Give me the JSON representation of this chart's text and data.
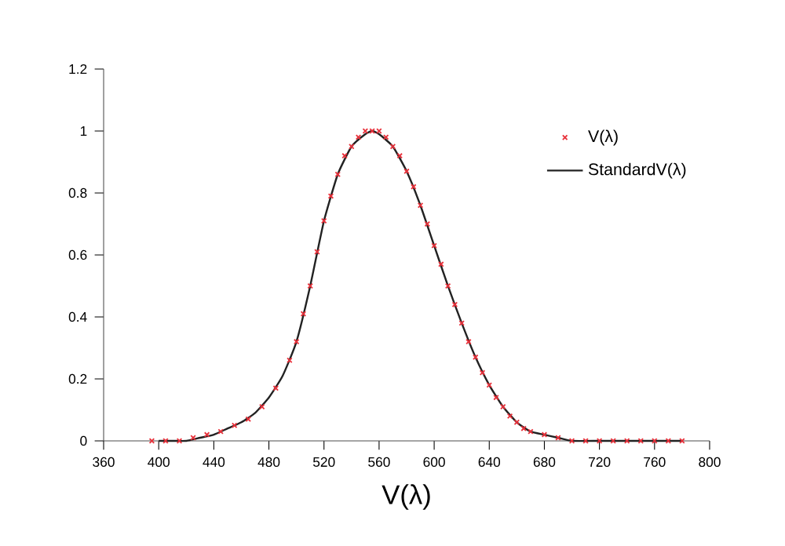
{
  "chart_data": {
    "type": "line",
    "xlabel": "V(λ)",
    "xlim": [
      360,
      800
    ],
    "ylim": [
      0,
      1.2
    ],
    "xticks": [
      360,
      400,
      440,
      480,
      520,
      560,
      600,
      640,
      680,
      720,
      760,
      800
    ],
    "yticks": [
      0,
      0.2,
      0.4,
      0.6,
      0.8,
      1,
      1.2
    ],
    "legend": "top right",
    "series": [
      {
        "name": "V(λ)",
        "type": "scatter",
        "marker": "cross",
        "color": "#e8303a",
        "x": [
          395,
          405,
          415,
          425,
          435,
          445,
          455,
          465,
          475,
          485,
          495,
          500,
          505,
          510,
          515,
          520,
          525,
          530,
          535,
          540,
          545,
          550,
          555,
          560,
          565,
          570,
          575,
          580,
          585,
          590,
          595,
          600,
          605,
          610,
          615,
          620,
          625,
          630,
          635,
          640,
          645,
          650,
          655,
          660,
          665,
          670,
          680,
          690,
          700,
          710,
          720,
          730,
          740,
          750,
          760,
          770,
          780
        ],
        "values": [
          0,
          0,
          0,
          0.01,
          0.02,
          0.03,
          0.05,
          0.07,
          0.11,
          0.17,
          0.26,
          0.32,
          0.41,
          0.5,
          0.61,
          0.71,
          0.79,
          0.86,
          0.92,
          0.95,
          0.98,
          1,
          1,
          1,
          0.98,
          0.95,
          0.92,
          0.87,
          0.82,
          0.76,
          0.7,
          0.63,
          0.57,
          0.5,
          0.44,
          0.38,
          0.32,
          0.27,
          0.22,
          0.18,
          0.14,
          0.11,
          0.08,
          0.06,
          0.04,
          0.03,
          0.02,
          0.01,
          0,
          0,
          0,
          0,
          0,
          0,
          0,
          0,
          0
        ]
      },
      {
        "name": "StandardV(λ)",
        "line_style": "solid",
        "color": "#222222",
        "x": [
          400,
          410,
          420,
          430,
          440,
          450,
          460,
          470,
          480,
          490,
          500,
          510,
          520,
          530,
          540,
          550,
          555,
          560,
          570,
          580,
          590,
          600,
          610,
          620,
          630,
          640,
          650,
          660,
          670,
          680,
          690,
          700,
          720,
          740,
          760,
          780
        ],
        "values": [
          0,
          0,
          0,
          0.01,
          0.02,
          0.04,
          0.06,
          0.09,
          0.14,
          0.21,
          0.32,
          0.5,
          0.71,
          0.86,
          0.95,
          0.99,
          1,
          0.99,
          0.95,
          0.87,
          0.76,
          0.63,
          0.5,
          0.38,
          0.27,
          0.18,
          0.11,
          0.06,
          0.03,
          0.02,
          0.01,
          0,
          0,
          0,
          0,
          0
        ]
      }
    ]
  }
}
